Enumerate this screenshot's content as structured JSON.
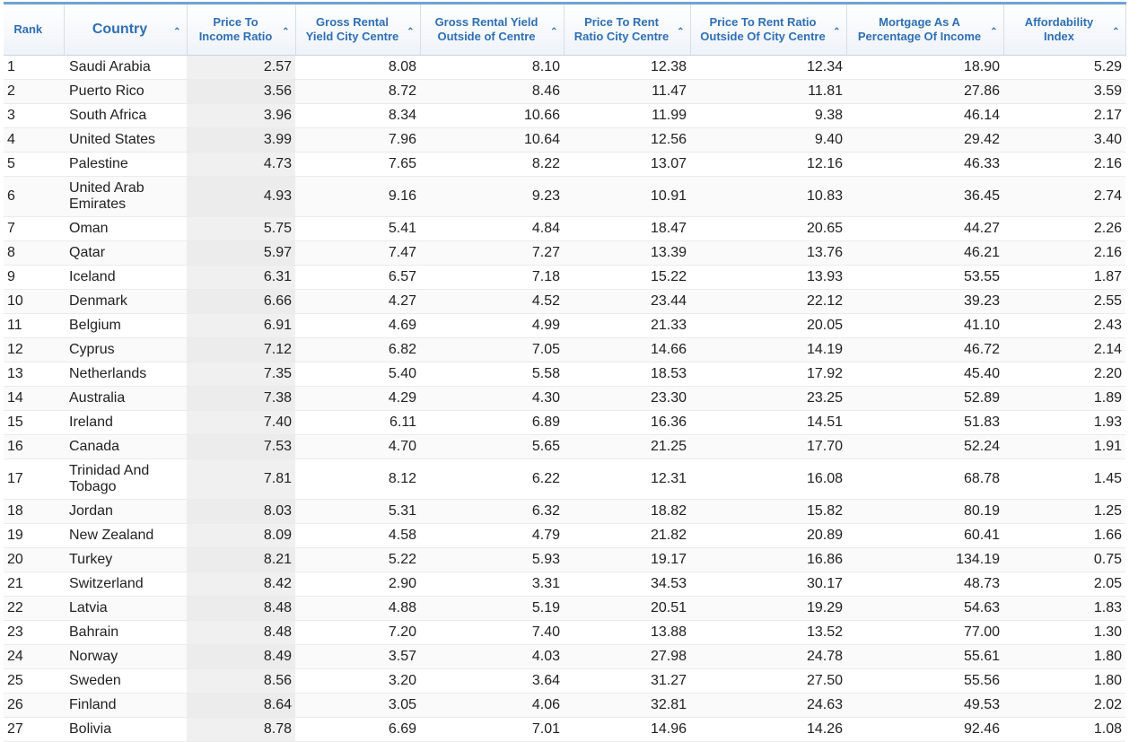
{
  "headers": {
    "rank": "Rank",
    "country": "Country",
    "pti": "Price To Income Ratio",
    "gry_city": "Gross Rental Yield City Centre",
    "gry_out": "Gross Rental Yield Outside of Centre",
    "ptr_city": "Price To Rent Ratio City Centre",
    "ptr_out": "Price To Rent Ratio Outside Of City Centre",
    "mortgage": "Mortgage As A Percentage Of Income",
    "afford": "Affordability Index"
  },
  "sort_arrow": "^",
  "rows": [
    [
      "1",
      "Saudi Arabia",
      "2.57",
      "8.08",
      "8.10",
      "12.38",
      "12.34",
      "18.90",
      "5.29"
    ],
    [
      "2",
      "Puerto Rico",
      "3.56",
      "8.72",
      "8.46",
      "11.47",
      "11.81",
      "27.86",
      "3.59"
    ],
    [
      "3",
      "South Africa",
      "3.96",
      "8.34",
      "10.66",
      "11.99",
      "9.38",
      "46.14",
      "2.17"
    ],
    [
      "4",
      "United States",
      "3.99",
      "7.96",
      "10.64",
      "12.56",
      "9.40",
      "29.42",
      "3.40"
    ],
    [
      "5",
      "Palestine",
      "4.73",
      "7.65",
      "8.22",
      "13.07",
      "12.16",
      "46.33",
      "2.16"
    ],
    [
      "6",
      "United Arab Emirates",
      "4.93",
      "9.16",
      "9.23",
      "10.91",
      "10.83",
      "36.45",
      "2.74"
    ],
    [
      "7",
      "Oman",
      "5.75",
      "5.41",
      "4.84",
      "18.47",
      "20.65",
      "44.27",
      "2.26"
    ],
    [
      "8",
      "Qatar",
      "5.97",
      "7.47",
      "7.27",
      "13.39",
      "13.76",
      "46.21",
      "2.16"
    ],
    [
      "9",
      "Iceland",
      "6.31",
      "6.57",
      "7.18",
      "15.22",
      "13.93",
      "53.55",
      "1.87"
    ],
    [
      "10",
      "Denmark",
      "6.66",
      "4.27",
      "4.52",
      "23.44",
      "22.12",
      "39.23",
      "2.55"
    ],
    [
      "11",
      "Belgium",
      "6.91",
      "4.69",
      "4.99",
      "21.33",
      "20.05",
      "41.10",
      "2.43"
    ],
    [
      "12",
      "Cyprus",
      "7.12",
      "6.82",
      "7.05",
      "14.66",
      "14.19",
      "46.72",
      "2.14"
    ],
    [
      "13",
      "Netherlands",
      "7.35",
      "5.40",
      "5.58",
      "18.53",
      "17.92",
      "45.40",
      "2.20"
    ],
    [
      "14",
      "Australia",
      "7.38",
      "4.29",
      "4.30",
      "23.30",
      "23.25",
      "52.89",
      "1.89"
    ],
    [
      "15",
      "Ireland",
      "7.40",
      "6.11",
      "6.89",
      "16.36",
      "14.51",
      "51.83",
      "1.93"
    ],
    [
      "16",
      "Canada",
      "7.53",
      "4.70",
      "5.65",
      "21.25",
      "17.70",
      "52.24",
      "1.91"
    ],
    [
      "17",
      "Trinidad And Tobago",
      "7.81",
      "8.12",
      "6.22",
      "12.31",
      "16.08",
      "68.78",
      "1.45"
    ],
    [
      "18",
      "Jordan",
      "8.03",
      "5.31",
      "6.32",
      "18.82",
      "15.82",
      "80.19",
      "1.25"
    ],
    [
      "19",
      "New Zealand",
      "8.09",
      "4.58",
      "4.79",
      "21.82",
      "20.89",
      "60.41",
      "1.66"
    ],
    [
      "20",
      "Turkey",
      "8.21",
      "5.22",
      "5.93",
      "19.17",
      "16.86",
      "134.19",
      "0.75"
    ],
    [
      "21",
      "Switzerland",
      "8.42",
      "2.90",
      "3.31",
      "34.53",
      "30.17",
      "48.73",
      "2.05"
    ],
    [
      "22",
      "Latvia",
      "8.48",
      "4.88",
      "5.19",
      "20.51",
      "19.29",
      "54.63",
      "1.83"
    ],
    [
      "23",
      "Bahrain",
      "8.48",
      "7.20",
      "7.40",
      "13.88",
      "13.52",
      "77.00",
      "1.30"
    ],
    [
      "24",
      "Norway",
      "8.49",
      "3.57",
      "4.03",
      "27.98",
      "24.78",
      "55.61",
      "1.80"
    ],
    [
      "25",
      "Sweden",
      "8.56",
      "3.20",
      "3.64",
      "31.27",
      "27.50",
      "55.56",
      "1.80"
    ],
    [
      "26",
      "Finland",
      "8.64",
      "3.05",
      "4.06",
      "32.81",
      "24.63",
      "49.53",
      "2.02"
    ],
    [
      "27",
      "Bolivia",
      "8.78",
      "6.69",
      "7.01",
      "14.96",
      "14.26",
      "92.46",
      "1.08"
    ]
  ]
}
